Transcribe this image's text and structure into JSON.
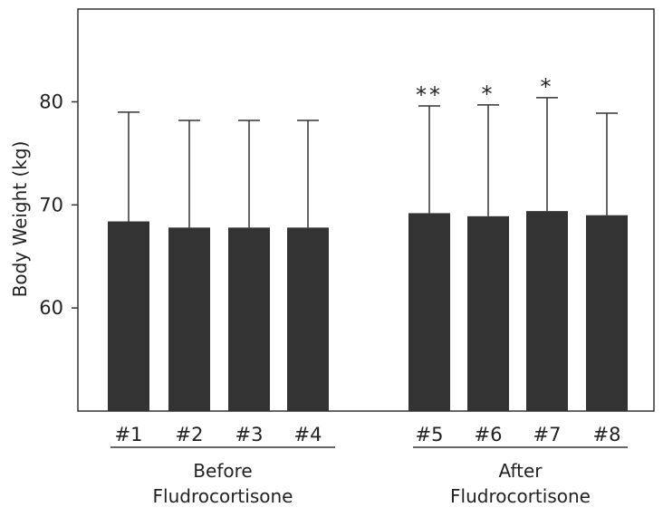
{
  "chart_data": {
    "type": "bar",
    "title": "",
    "xlabel": "",
    "ylabel": "Body Weight (kg)",
    "ylim": [
      50,
      89
    ],
    "yticks": [
      60,
      70,
      80
    ],
    "grid": false,
    "categories": [
      "#1",
      "#2",
      "#3",
      "#4",
      "#5",
      "#6",
      "#7",
      "#8"
    ],
    "values": [
      68.4,
      67.8,
      67.8,
      67.8,
      69.2,
      68.9,
      69.4,
      69.0
    ],
    "error_upper": [
      79.0,
      78.2,
      78.2,
      78.2,
      79.6,
      79.7,
      80.4,
      78.9
    ],
    "annotations": [
      "",
      "",
      "",
      "",
      "**",
      "*",
      "*",
      ""
    ],
    "groups": [
      {
        "label_line1": "Before",
        "label_line2": "Fludrocortisone",
        "members": [
          "#1",
          "#2",
          "#3",
          "#4"
        ]
      },
      {
        "label_line1": "After",
        "label_line2": "Fludrocortisone",
        "members": [
          "#5",
          "#6",
          "#7",
          "#8"
        ]
      }
    ],
    "bar_color": "#333333"
  }
}
